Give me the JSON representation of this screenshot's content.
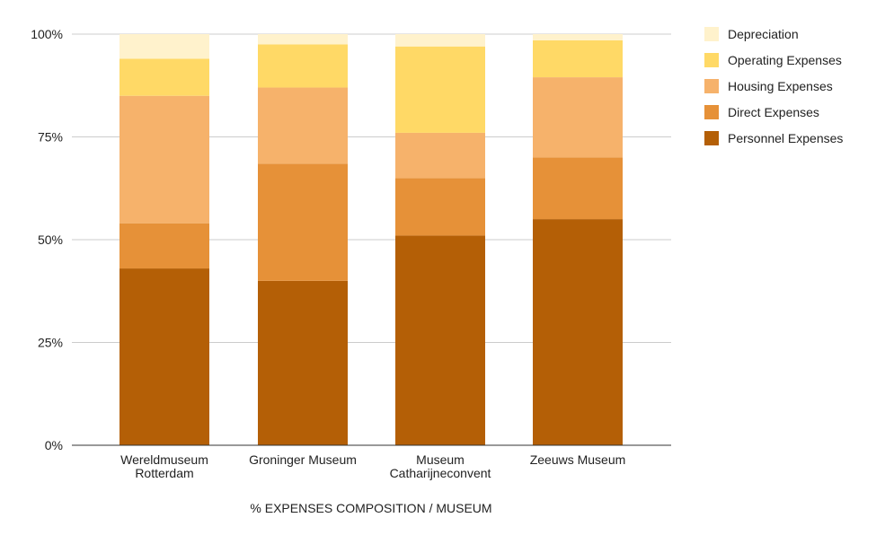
{
  "chart_data": {
    "type": "bar",
    "stacked": true,
    "percent": true,
    "title": "",
    "xlabel": "% EXPENSES COMPOSITION / MUSEUM",
    "ylabel": "",
    "ylim": [
      0,
      100
    ],
    "yticks": [
      "0%",
      "25%",
      "50%",
      "75%",
      "100%"
    ],
    "grid": true,
    "legend": "right",
    "categories": [
      [
        "Wereldmuseum",
        "Rotterdam"
      ],
      [
        "Groninger Museum"
      ],
      [
        "Museum",
        "Catharijneconvent"
      ],
      [
        "Zeeuws Museum"
      ]
    ],
    "series": [
      {
        "name": "Personnel Expenses",
        "color": "#b45f06",
        "values": [
          43,
          40,
          51,
          55
        ]
      },
      {
        "name": "Direct Expenses",
        "color": "#e69138",
        "values": [
          11,
          28.5,
          14,
          15
        ]
      },
      {
        "name": "Housing Expenses",
        "color": "#f6b26b",
        "values": [
          31,
          18.5,
          11,
          19.5
        ]
      },
      {
        "name": "Operating Expenses",
        "color": "#ffd966",
        "values": [
          9,
          10.5,
          21,
          9
        ]
      },
      {
        "name": "Depreciation",
        "color": "#fff2cc",
        "values": [
          6,
          2.5,
          3,
          1.5
        ]
      }
    ],
    "legend_order": [
      "Depreciation",
      "Operating Expenses",
      "Housing Expenses",
      "Direct Expenses",
      "Personnel Expenses"
    ]
  }
}
